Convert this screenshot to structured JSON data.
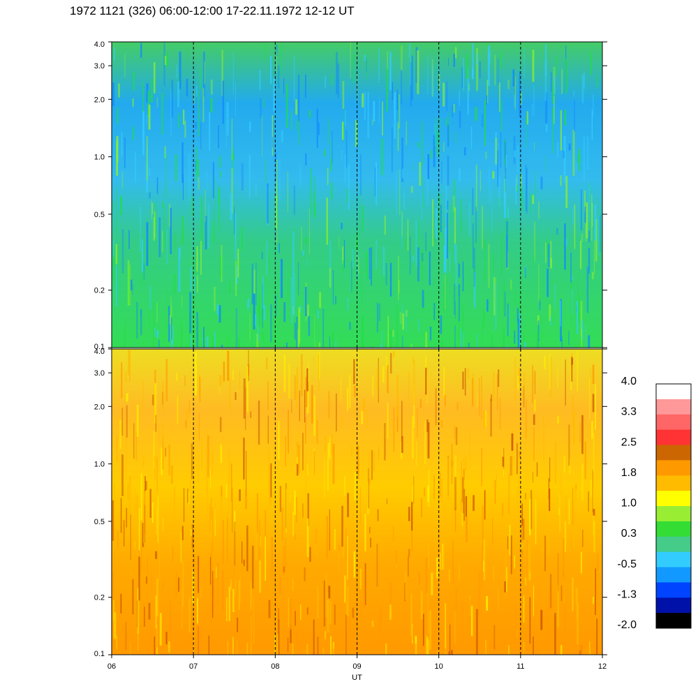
{
  "header": {
    "title": "1972 1121 (326) 06:00-12:00 17-22.11.1972  12-12 UT"
  },
  "chart_data": [
    {
      "type": "heatmap",
      "panel": "top",
      "y_scale": "log",
      "ylim": [
        0.1,
        4.0
      ],
      "y_ticks": [
        "0.1",
        "0.2",
        "0.5",
        "1.0",
        "2.0",
        "3.0",
        "4.0"
      ],
      "xlim": [
        6,
        12
      ],
      "x_ticks": [
        "06",
        "07",
        "08",
        "09",
        "10",
        "11",
        "12"
      ],
      "dominant_colors": [
        "#22dd44",
        "#33ccff",
        "#1188ff",
        "#88ee33"
      ]
    },
    {
      "type": "heatmap",
      "panel": "bottom",
      "y_scale": "log",
      "ylim": [
        0.1,
        4.0
      ],
      "y_ticks": [
        "0.1",
        "0.2",
        "0.5",
        "1.0",
        "2.0",
        "3.0",
        "4.0"
      ],
      "xlim": [
        6,
        12
      ],
      "x_ticks": [
        "06",
        "07",
        "08",
        "09",
        "10",
        "11",
        "12"
      ],
      "xlabel": "UT",
      "dominant_colors": [
        "#ffbb00",
        "#ff9900",
        "#ffee00",
        "#cc5500"
      ]
    }
  ],
  "colorbar": {
    "labels": [
      "4.0",
      "3.3",
      "2.5",
      "1.8",
      "1.0",
      "0.3",
      "-0.5",
      "-1.3",
      "-2.0"
    ],
    "colors": [
      "#ffffff",
      "#ff9999",
      "#ff6666",
      "#ff3333",
      "#cc6600",
      "#ff9900",
      "#ffbb00",
      "#ffff00",
      "#99ee33",
      "#33dd33",
      "#44cc88",
      "#33ccff",
      "#1199ff",
      "#0044ff",
      "#0011aa",
      "#000000"
    ]
  }
}
